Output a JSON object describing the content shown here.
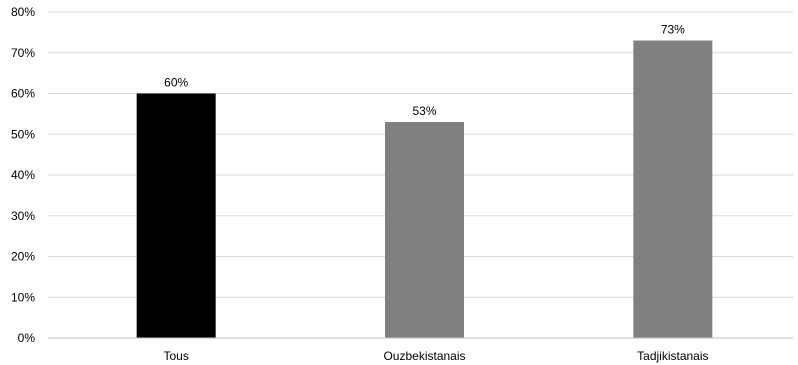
{
  "chart_data": {
    "type": "bar",
    "categories": [
      "Tous",
      "Ouzbekistanais",
      "Tadjikistanais"
    ],
    "values": [
      60,
      53,
      73
    ],
    "data_labels": [
      "60%",
      "53%",
      "73%"
    ],
    "bar_colors": [
      "#000000",
      "#808080",
      "#808080"
    ],
    "ylim": [
      0,
      80
    ],
    "y_ticks": [
      0,
      10,
      20,
      30,
      40,
      50,
      60,
      70,
      80
    ],
    "y_tick_labels": [
      "0%",
      "10%",
      "20%",
      "30%",
      "40%",
      "50%",
      "60%",
      "70%",
      "80%"
    ],
    "grid": true,
    "legend": "none",
    "title": "",
    "xlabel": "",
    "ylabel": ""
  }
}
